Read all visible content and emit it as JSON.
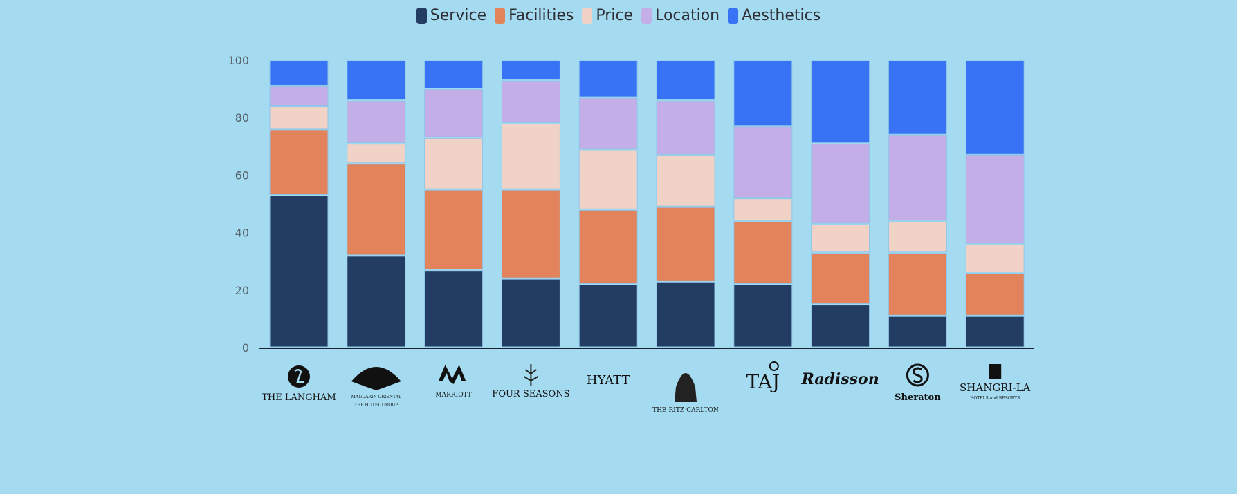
{
  "chart_data": {
    "type": "bar",
    "stacked": true,
    "title": "",
    "xlabel": "",
    "ylabel": "",
    "ylim": [
      0,
      100
    ],
    "yticks": [
      0,
      20,
      40,
      60,
      80,
      100
    ],
    "legend_position": "top-center",
    "categories": [
      "The Langham",
      "Mandarin Oriental",
      "Marriott",
      "Four Seasons",
      "Hyatt",
      "The Ritz-Carlton",
      "Taj",
      "Radisson",
      "Sheraton",
      "Shangri-La"
    ],
    "series": [
      {
        "name": "Service",
        "color": "#223d61",
        "values": [
          53,
          32,
          27,
          24,
          22,
          23,
          22,
          15,
          11,
          11
        ]
      },
      {
        "name": "Facilities",
        "color": "#e2835b",
        "values": [
          23,
          32,
          28,
          31,
          26,
          26,
          22,
          18,
          22,
          15
        ]
      },
      {
        "name": "Price",
        "color": "#f0d3c6",
        "values": [
          8,
          7,
          18,
          23,
          21,
          18,
          8,
          10,
          11,
          10
        ]
      },
      {
        "name": "Location",
        "color": "#c3aee8",
        "values": [
          7,
          15,
          17,
          15,
          18,
          19,
          25,
          28,
          30,
          31
        ]
      },
      {
        "name": "Aesthetics",
        "color": "#3773f4",
        "values": [
          9,
          14,
          10,
          7,
          13,
          14,
          23,
          29,
          26,
          33
        ]
      }
    ]
  },
  "logos": [
    {
      "main": "THE LANGHAM",
      "sub": ""
    },
    {
      "main": "MANDARIN ORIENTAL",
      "sub": "THE HOTEL GROUP"
    },
    {
      "main": "MARRIOTT",
      "sub": ""
    },
    {
      "main": "FOUR SEASONS",
      "sub": ""
    },
    {
      "main": "HYATT",
      "sub": ""
    },
    {
      "main": "THE RITZ-CARLTON",
      "sub": ""
    },
    {
      "main": "TAJ",
      "sub": ""
    },
    {
      "main": "Radisson",
      "sub": ""
    },
    {
      "main": "Sheraton",
      "sub": ""
    },
    {
      "main": "SHANGRI-LA",
      "sub": "HOTELS and RESORTS"
    }
  ]
}
